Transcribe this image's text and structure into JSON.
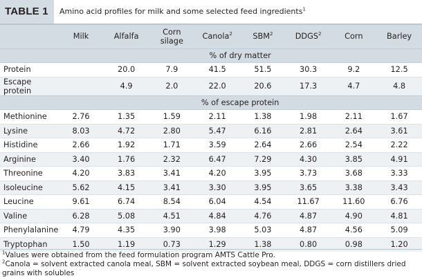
{
  "title": {
    "badge": "TABLE 1",
    "text": "Amino acid profiles for milk and some selected feed ingredients",
    "sup": "1"
  },
  "columns": [
    {
      "label": "Milk",
      "sup": ""
    },
    {
      "label": "Alfalfa",
      "sup": ""
    },
    {
      "label": "Corn\nsilage",
      "sup": ""
    },
    {
      "label": "Canola",
      "sup": "2"
    },
    {
      "label": "SBM",
      "sup": "2"
    },
    {
      "label": "DDGS",
      "sup": "2"
    },
    {
      "label": "Corn",
      "sup": ""
    },
    {
      "label": "Barley",
      "sup": ""
    }
  ],
  "section1": {
    "heading": "% of dry matter",
    "rows": [
      {
        "label": "Protein",
        "values": [
          "",
          "20.0",
          "7.9",
          "41.5",
          "51.5",
          "30.3",
          "9.2",
          "12.5"
        ]
      },
      {
        "label": "Escape protein",
        "values": [
          "",
          "4.9",
          "2.0",
          "22.0",
          "20.6",
          "17.3",
          "4.7",
          "4.8"
        ]
      }
    ]
  },
  "section2": {
    "heading": "% of escape protein",
    "rows": [
      {
        "label": "Methionine",
        "values": [
          "2.76",
          "1.35",
          "1.59",
          "2.11",
          "1.38",
          "1.98",
          "2.11",
          "1.67"
        ]
      },
      {
        "label": "Lysine",
        "values": [
          "8.03",
          "4.72",
          "2.80",
          "5.47",
          "6.16",
          "2.81",
          "2.64",
          "3.61"
        ]
      },
      {
        "label": "Histidine",
        "values": [
          "2.66",
          "1.92",
          "1.71",
          "3.59",
          "2.64",
          "2.66",
          "2.54",
          "2.22"
        ]
      },
      {
        "label": "Arginine",
        "values": [
          "3.40",
          "1.76",
          "2.32",
          "6.47",
          "7.29",
          "4.30",
          "3.85",
          "4.91"
        ]
      },
      {
        "label": "Threonine",
        "values": [
          "4.20",
          "3.83",
          "3.41",
          "4.20",
          "3.95",
          "3.73",
          "3.68",
          "3.33"
        ]
      },
      {
        "label": "Isoleucine",
        "values": [
          "5.62",
          "4.15",
          "3.41",
          "3.30",
          "3.95",
          "3.65",
          "3.38",
          "3.43"
        ]
      },
      {
        "label": "Leucine",
        "values": [
          "9.61",
          "6.74",
          "8.54",
          "6.04",
          "4.54",
          "11.67",
          "11.60",
          "6.76"
        ]
      },
      {
        "label": "Valine",
        "values": [
          "6.28",
          "5.08",
          "4.51",
          "4.84",
          "4.76",
          "4.87",
          "4.90",
          "4.81"
        ]
      },
      {
        "label": "Phenylalanine",
        "values": [
          "4.79",
          "4.35",
          "3.90",
          "3.98",
          "5.03",
          "4.87",
          "4.56",
          "5.09"
        ]
      },
      {
        "label": "Tryptophan",
        "values": [
          "1.50",
          "1.19",
          "0.73",
          "1.29",
          "1.38",
          "0.80",
          "0.98",
          "1.20"
        ]
      }
    ]
  },
  "footnotes": [
    {
      "sup": "1",
      "text": "Values were obtained from the feed formulation program AMTS Cattle Pro."
    },
    {
      "sup": "2",
      "text": "Canola = solvent extracted canola meal, SBM = solvent extracted soybean meal, DDGS = corn distillers dried grains with solubles"
    }
  ]
}
